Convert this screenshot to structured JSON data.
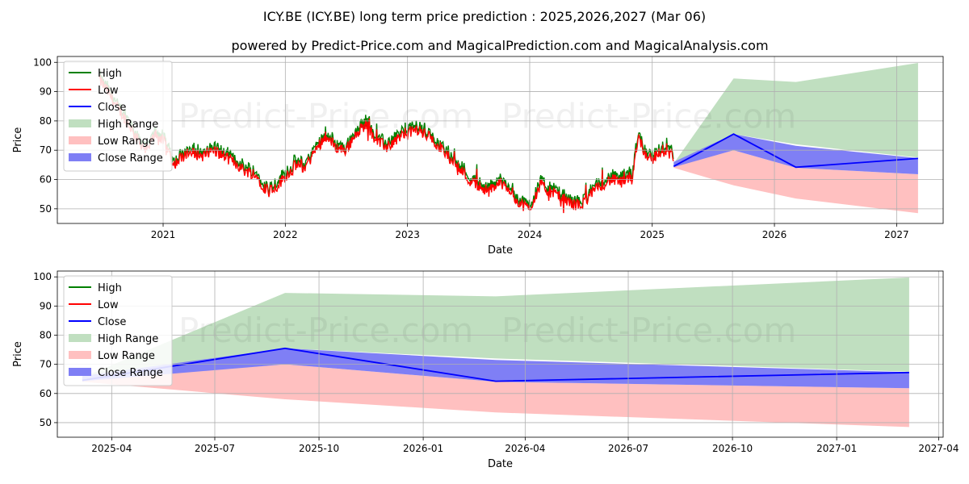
{
  "title": "ICY.BE (ICY.BE) long term price prediction : 2025,2026,2027 (Mar 06)",
  "subtitle": "powered by Predict-Price.com and MagicalPrediction.com and MagicalAnalysis.com",
  "watermark": "Predict-Price.com",
  "legend": {
    "high": "High",
    "low": "Low",
    "close": "Close",
    "high_range": "High Range",
    "low_range": "Low Range",
    "close_range": "Close Range"
  },
  "colors": {
    "high": "#008000",
    "low": "#ff0000",
    "close": "#0000ff",
    "high_range": "#c0dfc0",
    "low_range": "#ffc0c0",
    "close_range": "#7f7ff5",
    "grid": "#b0b0b0"
  },
  "chart_data": [
    {
      "type": "line",
      "xlabel": "Date",
      "ylabel": "Price",
      "ylim": [
        45,
        102
      ],
      "xlim": [
        "2020-02-20",
        "2027-05-20"
      ],
      "x_ticks": [
        "2021",
        "2022",
        "2023",
        "2024",
        "2025",
        "2026",
        "2027"
      ],
      "y_ticks": [
        50,
        60,
        70,
        80,
        90,
        100
      ],
      "grid": true,
      "legend_position": "top-left",
      "history_anchors": [
        [
          "2020-06-25",
          94
        ],
        [
          "2020-07-20",
          90
        ],
        [
          "2020-08-20",
          84
        ],
        [
          "2020-09-20",
          79
        ],
        [
          "2020-10-20",
          73
        ],
        [
          "2020-11-15",
          70
        ],
        [
          "2020-12-10",
          76
        ],
        [
          "2021-01-10",
          72
        ],
        [
          "2021-02-01",
          65
        ],
        [
          "2021-03-01",
          68
        ],
        [
          "2021-04-01",
          69
        ],
        [
          "2021-05-01",
          68
        ],
        [
          "2021-06-01",
          70
        ],
        [
          "2021-07-01",
          68
        ],
        [
          "2021-08-01",
          66
        ],
        [
          "2021-09-01",
          63
        ],
        [
          "2021-10-01",
          62
        ],
        [
          "2021-11-01",
          57
        ],
        [
          "2021-12-01",
          57
        ],
        [
          "2022-01-01",
          61
        ],
        [
          "2022-02-01",
          65
        ],
        [
          "2022-03-01",
          64
        ],
        [
          "2022-04-01",
          70
        ],
        [
          "2022-05-01",
          75
        ],
        [
          "2022-06-01",
          71
        ],
        [
          "2022-07-01",
          70
        ],
        [
          "2022-08-01",
          76
        ],
        [
          "2022-09-01",
          79
        ],
        [
          "2022-10-01",
          73
        ],
        [
          "2022-11-01",
          71
        ],
        [
          "2022-12-01",
          74
        ],
        [
          "2023-01-01",
          76
        ],
        [
          "2023-02-01",
          77
        ],
        [
          "2023-03-01",
          75
        ],
        [
          "2023-04-01",
          72
        ],
        [
          "2023-05-01",
          68
        ],
        [
          "2023-06-01",
          65
        ],
        [
          "2023-07-01",
          60
        ],
        [
          "2023-08-01",
          58
        ],
        [
          "2023-09-01",
          56
        ],
        [
          "2023-10-01",
          59
        ],
        [
          "2023-11-01",
          57
        ],
        [
          "2023-12-01",
          52
        ],
        [
          "2024-01-01",
          50
        ],
        [
          "2024-02-01",
          58
        ],
        [
          "2024-03-01",
          56
        ],
        [
          "2024-04-01",
          54
        ],
        [
          "2024-05-01",
          52
        ],
        [
          "2024-06-01",
          51
        ],
        [
          "2024-07-01",
          55
        ],
        [
          "2024-08-01",
          58
        ],
        [
          "2024-09-01",
          60
        ],
        [
          "2024-10-01",
          59
        ],
        [
          "2024-11-01",
          60
        ],
        [
          "2024-11-20",
          75
        ],
        [
          "2024-12-10",
          69
        ],
        [
          "2025-01-01",
          67
        ],
        [
          "2025-02-01",
          70
        ],
        [
          "2025-03-06",
          68
        ]
      ],
      "forecast_x": [
        "2025-03-06",
        "2025-09-01",
        "2026-03-06",
        "2027-03-06"
      ],
      "high_range": {
        "upper": [
          65.5,
          94.5,
          93.3,
          99.8
        ],
        "lower": [
          65,
          75.5,
          72,
          67.5
        ]
      },
      "low_range": {
        "upper": [
          64.5,
          70,
          64,
          61.8
        ],
        "lower": [
          64,
          58,
          53.5,
          48.5
        ]
      },
      "close_range": {
        "upper": [
          66,
          75.5,
          71.5,
          67.3
        ],
        "lower": [
          64.2,
          70,
          64,
          61.8
        ]
      },
      "close": [
        64.5,
        75.5,
        64.2,
        67.2
      ]
    },
    {
      "type": "line",
      "xlabel": "Date",
      "ylabel": "Price",
      "ylim": [
        45,
        102
      ],
      "xlim": [
        "2025-02-12",
        "2027-04-05"
      ],
      "x_ticks": [
        "2025-04",
        "2025-07",
        "2025-10",
        "2026-01",
        "2026-04",
        "2026-07",
        "2026-10",
        "2027-01",
        "2027-04"
      ],
      "y_ticks": [
        50,
        60,
        70,
        80,
        90,
        100
      ],
      "grid": true,
      "legend_position": "top-left"
    }
  ]
}
